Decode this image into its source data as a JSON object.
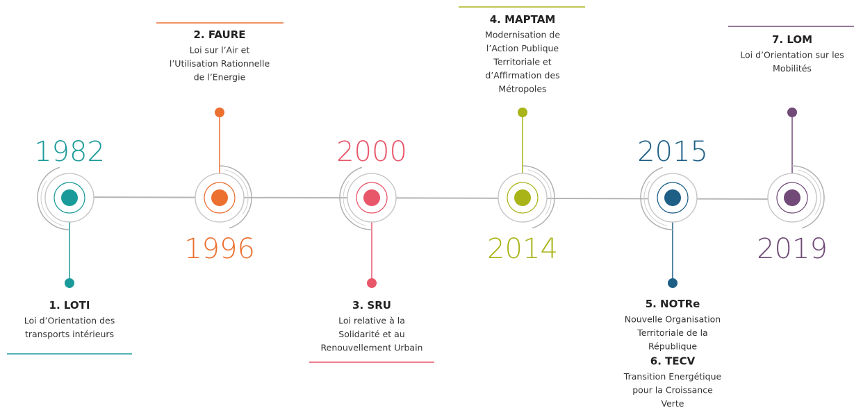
{
  "events": [
    {
      "year": "1982",
      "color": "#1a9b9a",
      "laws": [
        {
          "title": "1. LOTI",
          "lines": [
            "Loi d’Orientation des",
            "transports intérieurs"
          ]
        }
      ]
    },
    {
      "year": "1996",
      "color": "#ec7030",
      "laws": [
        {
          "title": "2. FAURE",
          "lines": [
            "Loi sur l’Air et",
            "l’Utilisation Rationnelle",
            "de l’Energie"
          ]
        }
      ]
    },
    {
      "year": "2000",
      "color": "#e8566a",
      "laws": [
        {
          "title": "3. SRU",
          "lines": [
            "Loi relative à la",
            "Solidarité et au",
            "Renouvellement Urbain"
          ]
        }
      ]
    },
    {
      "year": "2014",
      "color": "#a9b418",
      "laws": [
        {
          "title": "4. MAPTAM",
          "lines": [
            "Modernisation de",
            "l’Action Publique",
            "Territoriale et",
            "d’Affirmation des",
            "Métropoles"
          ]
        }
      ]
    },
    {
      "year": "2015",
      "color": "#1e5f86",
      "laws": [
        {
          "title": "5. NOTRe",
          "lines": [
            "Nouvelle Organisation",
            "Territoriale de la",
            "République"
          ]
        },
        {
          "title": "6. TECV",
          "lines": [
            "Transition Energétique",
            "pour la Croissance",
            "Verte"
          ]
        }
      ]
    },
    {
      "year": "2019",
      "color": "#714a78",
      "laws": [
        {
          "title": "7. LOM",
          "lines": [
            "Loi d’Orientation sur les",
            "Mobilités"
          ]
        }
      ]
    }
  ]
}
